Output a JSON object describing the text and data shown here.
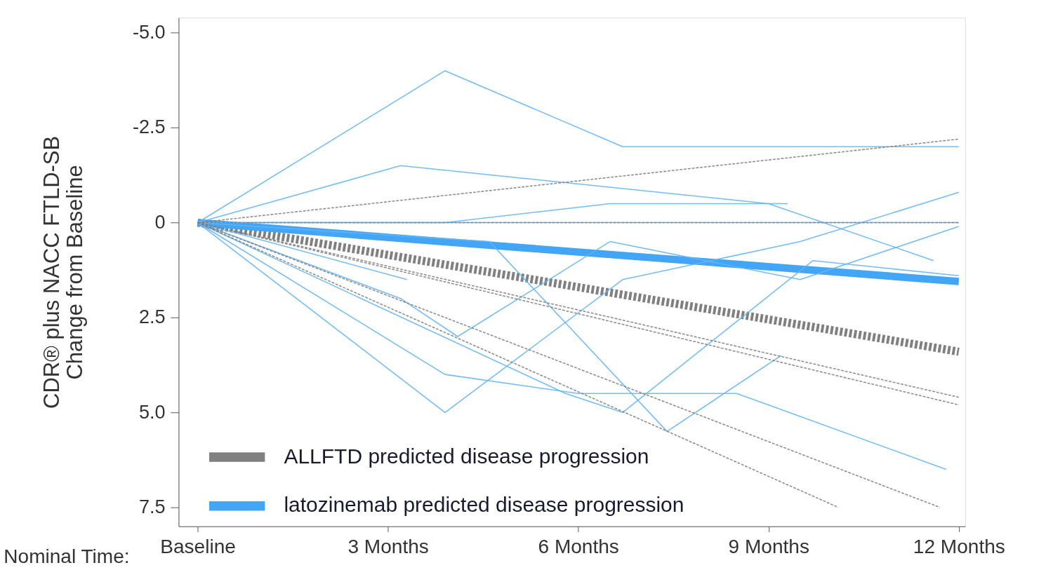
{
  "chart_data": {
    "type": "line",
    "xlabel": "Nominal Time:",
    "ylabel": "CDR® plus NACC FTLD-SB\nChange from Baseline",
    "xlim": [
      -0.3,
      12.1
    ],
    "ylim": [
      8.0,
      -5.4
    ],
    "xticks": [
      {
        "value": 0,
        "label": "Baseline"
      },
      {
        "value": 3,
        "label": "3 Months"
      },
      {
        "value": 6,
        "label": "6 Months"
      },
      {
        "value": 9,
        "label": "9 Months"
      },
      {
        "value": 12,
        "label": "12 Months"
      }
    ],
    "yticks": [
      {
        "value": -5,
        "label": "-5.0"
      },
      {
        "value": -2.5,
        "label": "-2.5"
      },
      0,
      {
        "value": 2.5,
        "label": "2.5"
      },
      {
        "value": 5,
        "label": "5.0"
      },
      {
        "value": 7.5,
        "label": "7.5"
      }
    ],
    "grid": false,
    "legend": "bottom left",
    "marker": "none",
    "series": [
      {
        "color": "#808080",
        "line_style": "dashed",
        "x": [
          0,
          12
        ],
        "values": [
          0,
          -2.2
        ]
      },
      {
        "color": "#808080",
        "line_style": "dashed",
        "x": [
          0,
          12
        ],
        "values": [
          0,
          0
        ]
      },
      {
        "color": "#808080",
        "line_style": "dashed",
        "x": [
          0,
          12
        ],
        "values": [
          0,
          4.6
        ]
      },
      {
        "color": "#808080",
        "line_style": "dashed",
        "x": [
          0,
          12
        ],
        "values": [
          0,
          4.8
        ]
      },
      {
        "color": "#808080",
        "line_style": "dashed",
        "x": [
          0,
          11.7
        ],
        "values": [
          0,
          7.5
        ]
      },
      {
        "color": "#808080",
        "line_style": "dashed",
        "x": [
          0,
          10.1
        ],
        "values": [
          0,
          7.5
        ]
      },
      {
        "color": "#64b5f6",
        "line_style": "solid",
        "x": [
          0,
          3.9,
          6.7,
          12
        ],
        "values": [
          0,
          -4.0,
          -2.0,
          -2.0
        ]
      },
      {
        "color": "#64b5f6",
        "line_style": "solid",
        "x": [
          0,
          3.2,
          9.0,
          11.6
        ],
        "values": [
          0,
          -1.5,
          -0.5,
          1.0
        ]
      },
      {
        "color": "#64b5f6",
        "line_style": "solid",
        "x": [
          0,
          3.9,
          6.5,
          9.3
        ],
        "values": [
          0,
          0,
          -0.5,
          -0.5
        ]
      },
      {
        "color": "#64b5f6",
        "line_style": "solid",
        "x": [
          0,
          12
        ],
        "values": [
          0,
          0
        ]
      },
      {
        "color": "#64b5f6",
        "line_style": "solid",
        "x": [
          0,
          3.3
        ],
        "values": [
          0,
          1.5
        ]
      },
      {
        "color": "#64b5f6",
        "line_style": "solid",
        "x": [
          0,
          4.6,
          7.4,
          9.2
        ],
        "values": [
          0,
          0.5,
          5.5,
          3.5
        ]
      },
      {
        "color": "#64b5f6",
        "line_style": "solid",
        "x": [
          0,
          3.2,
          4.1,
          6.5,
          9.5,
          12
        ],
        "values": [
          0,
          2.0,
          3.0,
          0.5,
          1.5,
          0.1
        ]
      },
      {
        "color": "#64b5f6",
        "line_style": "solid",
        "x": [
          0,
          3.9,
          6.7,
          9.5,
          12
        ],
        "values": [
          0,
          5.0,
          1.5,
          0.5,
          -0.8
        ]
      },
      {
        "color": "#64b5f6",
        "line_style": "solid",
        "x": [
          0,
          3.9,
          6.0,
          8.5,
          11.8
        ],
        "values": [
          0,
          4.0,
          4.5,
          4.5,
          6.5
        ]
      },
      {
        "color": "#64b5f6",
        "line_style": "solid",
        "x": [
          0,
          5.8,
          6.7,
          9.7,
          12
        ],
        "values": [
          0,
          4.5,
          5.0,
          1.0,
          1.4
        ]
      },
      {
        "name": "ALLFTD predicted disease progression",
        "color": "#808080",
        "line_style": "dashed",
        "x": [
          0,
          12
        ],
        "values": [
          0,
          3.4
        ]
      },
      {
        "name": "latozinemab predicted disease progression",
        "color": "#42a5f5",
        "line_style": "solid",
        "x": [
          0,
          12
        ],
        "values": [
          0,
          1.55
        ]
      }
    ]
  }
}
